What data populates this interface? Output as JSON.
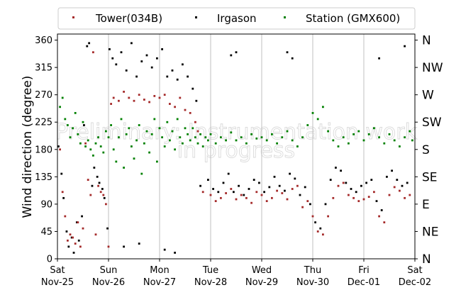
{
  "chart_data": {
    "type": "scatter",
    "ylabel": "Wind direction (degree)",
    "ylim": [
      0,
      370
    ],
    "xlim": [
      "2024-11-25T00:00",
      "2024-12-02T00:00"
    ],
    "grid": "vertical at day boundaries",
    "legend": {
      "placement": "top, outside plot, 3 columns"
    },
    "watermark": [
      "Preliminary: Instrumentation work",
      "in progress"
    ],
    "x_tick_labels": [
      {
        "day": "Sat",
        "date": "Nov-25"
      },
      {
        "day": "Sun",
        "date": "Nov-26"
      },
      {
        "day": "Mon",
        "date": "Nov-27"
      },
      {
        "day": "Tue",
        "date": "Nov-28"
      },
      {
        "day": "Wed",
        "date": "Nov-29"
      },
      {
        "day": "Thu",
        "date": "Nov-30"
      },
      {
        "day": "Fri",
        "date": "Dec-01"
      },
      {
        "day": "Sat",
        "date": "Dec-02"
      }
    ],
    "y_ticks": [
      0,
      45,
      90,
      135,
      180,
      225,
      270,
      315,
      360
    ],
    "y_ticks_right": [
      {
        "value": 0,
        "label": "N"
      },
      {
        "value": 45,
        "label": "NE"
      },
      {
        "value": 90,
        "label": "E"
      },
      {
        "value": 135,
        "label": "SE"
      },
      {
        "value": 180,
        "label": "S"
      },
      {
        "value": 225,
        "label": "SW"
      },
      {
        "value": 270,
        "label": "W"
      },
      {
        "value": 315,
        "label": "NW"
      },
      {
        "value": 360,
        "label": "N"
      }
    ],
    "series": [
      {
        "name": "Tower(034B)",
        "color": "#a52a2a",
        "x_unit": "days since Nov-25 00:00",
        "points": [
          [
            0.05,
            180
          ],
          [
            0.1,
            110
          ],
          [
            0.15,
            70
          ],
          [
            0.2,
            30
          ],
          [
            0.25,
            40
          ],
          [
            0.3,
            35
          ],
          [
            0.35,
            25
          ],
          [
            0.4,
            60
          ],
          [
            0.45,
            20
          ],
          [
            0.5,
            50
          ],
          [
            0.55,
            190
          ],
          [
            0.6,
            130
          ],
          [
            0.65,
            105
          ],
          [
            0.7,
            340
          ],
          [
            0.75,
            40
          ],
          [
            0.8,
            120
          ],
          [
            0.85,
            110
          ],
          [
            0.9,
            105
          ],
          [
            0.95,
            90
          ],
          [
            1.0,
            20
          ],
          [
            1.05,
            255
          ],
          [
            1.1,
            265
          ],
          [
            1.2,
            260
          ],
          [
            1.3,
            275
          ],
          [
            1.4,
            265
          ],
          [
            1.5,
            260
          ],
          [
            1.6,
            270
          ],
          [
            1.7,
            262
          ],
          [
            1.8,
            258
          ],
          [
            1.9,
            268
          ],
          [
            2.0,
            265
          ],
          [
            2.1,
            270
          ],
          [
            2.2,
            255
          ],
          [
            2.3,
            250
          ],
          [
            2.4,
            265
          ],
          [
            2.5,
            245
          ],
          [
            2.6,
            240
          ],
          [
            2.7,
            225
          ],
          [
            2.75,
            210
          ],
          [
            2.85,
            110
          ],
          [
            3.0,
            105
          ],
          [
            3.1,
            95
          ],
          [
            3.2,
            100
          ],
          [
            3.3,
            108
          ],
          [
            3.4,
            115
          ],
          [
            3.5,
            98
          ],
          [
            3.6,
            105
          ],
          [
            3.7,
            100
          ],
          [
            3.8,
            92
          ],
          [
            3.9,
            110
          ],
          [
            4.0,
            105
          ],
          [
            4.1,
            95
          ],
          [
            4.2,
            100
          ],
          [
            4.3,
            112
          ],
          [
            4.4,
            108
          ],
          [
            4.5,
            98
          ],
          [
            4.6,
            115
          ],
          [
            4.7,
            120
          ],
          [
            4.8,
            85
          ],
          [
            4.9,
            95
          ],
          [
            5.0,
            70
          ],
          [
            5.1,
            45
          ],
          [
            5.2,
            40
          ],
          [
            5.3,
            70
          ],
          [
            5.4,
            100
          ],
          [
            5.5,
            120
          ],
          [
            5.6,
            125
          ],
          [
            5.7,
            105
          ],
          [
            5.8,
            100
          ],
          [
            5.9,
            95
          ],
          [
            6.0,
            98
          ],
          [
            6.1,
            102
          ],
          [
            6.2,
            110
          ],
          [
            6.3,
            70
          ],
          [
            6.4,
            60
          ],
          [
            6.5,
            105
          ],
          [
            6.6,
            118
          ],
          [
            6.7,
            112
          ],
          [
            6.8,
            100
          ],
          [
            6.9,
            105
          ]
        ]
      },
      {
        "name": "Irgason",
        "color": "#000000",
        "x_unit": "days since Nov-25 00:00",
        "points": [
          [
            0.02,
            185
          ],
          [
            0.08,
            140
          ],
          [
            0.12,
            100
          ],
          [
            0.18,
            45
          ],
          [
            0.22,
            20
          ],
          [
            0.28,
            35
          ],
          [
            0.32,
            10
          ],
          [
            0.38,
            60
          ],
          [
            0.42,
            30
          ],
          [
            0.48,
            70
          ],
          [
            0.52,
            220
          ],
          [
            0.58,
            350
          ],
          [
            0.62,
            355
          ],
          [
            0.68,
            120
          ],
          [
            0.72,
            150
          ],
          [
            0.78,
            135
          ],
          [
            0.82,
            125
          ],
          [
            0.88,
            115
          ],
          [
            0.92,
            100
          ],
          [
            0.98,
            50
          ],
          [
            1.02,
            345
          ],
          [
            1.08,
            330
          ],
          [
            1.15,
            320
          ],
          [
            1.25,
            340
          ],
          [
            1.35,
            310
          ],
          [
            1.45,
            355
          ],
          [
            1.55,
            300
          ],
          [
            1.65,
            325
          ],
          [
            1.75,
            335
          ],
          [
            1.85,
            315
          ],
          [
            1.95,
            330
          ],
          [
            2.05,
            345
          ],
          [
            2.15,
            300
          ],
          [
            2.25,
            310
          ],
          [
            2.35,
            295
          ],
          [
            2.45,
            320
          ],
          [
            2.55,
            300
          ],
          [
            2.65,
            280
          ],
          [
            2.72,
            260
          ],
          [
            2.8,
            120
          ],
          [
            2.95,
            130
          ],
          [
            3.05,
            115
          ],
          [
            3.15,
            110
          ],
          [
            3.25,
            125
          ],
          [
            3.35,
            140
          ],
          [
            3.45,
            110
          ],
          [
            3.55,
            120
          ],
          [
            3.65,
            105
          ],
          [
            3.75,
            115
          ],
          [
            3.85,
            130
          ],
          [
            3.95,
            125
          ],
          [
            4.05,
            110
          ],
          [
            4.15,
            118
          ],
          [
            4.25,
            135
          ],
          [
            4.35,
            120
          ],
          [
            4.45,
            112
          ],
          [
            4.55,
            140
          ],
          [
            4.65,
            132
          ],
          [
            4.75,
            105
          ],
          [
            4.85,
            118
          ],
          [
            4.95,
            90
          ],
          [
            5.05,
            60
          ],
          [
            5.15,
            50
          ],
          [
            5.25,
            90
          ],
          [
            5.35,
            130
          ],
          [
            5.45,
            150
          ],
          [
            5.55,
            145
          ],
          [
            5.65,
            125
          ],
          [
            5.75,
            115
          ],
          [
            5.85,
            110
          ],
          [
            5.95,
            120
          ],
          [
            6.05,
            125
          ],
          [
            6.15,
            130
          ],
          [
            6.25,
            95
          ],
          [
            6.35,
            80
          ],
          [
            6.45,
            135
          ],
          [
            6.55,
            145
          ],
          [
            6.65,
            130
          ],
          [
            6.75,
            120
          ],
          [
            6.85,
            125
          ],
          [
            4.5,
            340
          ],
          [
            4.6,
            330
          ],
          [
            3.4,
            335
          ],
          [
            3.5,
            340
          ],
          [
            2.3,
            10
          ],
          [
            6.8,
            350
          ],
          [
            1.3,
            20
          ],
          [
            1.6,
            25
          ],
          [
            2.1,
            15
          ],
          [
            6.3,
            330
          ]
        ]
      },
      {
        "name": "Station (GMX600)",
        "color": "#008000",
        "x_unit": "days since Nov-25 00:00",
        "points": [
          [
            0.05,
            250
          ],
          [
            0.1,
            265
          ],
          [
            0.15,
            230
          ],
          [
            0.2,
            220
          ],
          [
            0.25,
            200
          ],
          [
            0.3,
            215
          ],
          [
            0.35,
            240
          ],
          [
            0.4,
            205
          ],
          [
            0.45,
            190
          ],
          [
            0.5,
            225
          ],
          [
            0.55,
            185
          ],
          [
            0.6,
            195
          ],
          [
            0.65,
            180
          ],
          [
            0.7,
            170
          ],
          [
            0.75,
            190
          ],
          [
            0.8,
            200
          ],
          [
            0.85,
            185
          ],
          [
            0.9,
            175
          ],
          [
            0.95,
            210
          ],
          [
            1.0,
            200
          ],
          [
            1.05,
            220
          ],
          [
            1.1,
            180
          ],
          [
            1.15,
            160
          ],
          [
            1.2,
            200
          ],
          [
            1.25,
            230
          ],
          [
            1.3,
            150
          ],
          [
            1.35,
            205
          ],
          [
            1.4,
            215
          ],
          [
            1.45,
            185
          ],
          [
            1.5,
            165
          ],
          [
            1.55,
            195
          ],
          [
            1.6,
            220
          ],
          [
            1.65,
            140
          ],
          [
            1.7,
            190
          ],
          [
            1.75,
            210
          ],
          [
            1.8,
            175
          ],
          [
            1.85,
            205
          ],
          [
            1.9,
            230
          ],
          [
            1.95,
            160
          ],
          [
            2.0,
            215
          ],
          [
            2.05,
            200
          ],
          [
            2.1,
            185
          ],
          [
            2.15,
            225
          ],
          [
            2.2,
            195
          ],
          [
            2.25,
            210
          ],
          [
            2.3,
            180
          ],
          [
            2.35,
            230
          ],
          [
            2.4,
            200
          ],
          [
            2.45,
            190
          ],
          [
            2.5,
            215
          ],
          [
            2.55,
            205
          ],
          [
            2.6,
            195
          ],
          [
            2.65,
            215
          ],
          [
            2.7,
            200
          ],
          [
            2.75,
            190
          ],
          [
            2.8,
            205
          ],
          [
            2.85,
            185
          ],
          [
            2.9,
            200
          ],
          [
            2.95,
            195
          ],
          [
            3.0,
            205
          ],
          [
            3.1,
            190
          ],
          [
            3.2,
            200
          ],
          [
            3.3,
            195
          ],
          [
            3.4,
            208
          ],
          [
            3.5,
            195
          ],
          [
            3.6,
            200
          ],
          [
            3.7,
            190
          ],
          [
            3.8,
            205
          ],
          [
            3.9,
            198
          ],
          [
            4.0,
            200
          ],
          [
            4.1,
            195
          ],
          [
            4.2,
            205
          ],
          [
            4.3,
            190
          ],
          [
            4.4,
            200
          ],
          [
            4.5,
            210
          ],
          [
            4.6,
            195
          ],
          [
            4.7,
            185
          ],
          [
            4.8,
            200
          ],
          [
            4.9,
            220
          ],
          [
            5.0,
            240
          ],
          [
            5.1,
            230
          ],
          [
            5.2,
            250
          ],
          [
            5.3,
            210
          ],
          [
            5.4,
            195
          ],
          [
            5.5,
            185
          ],
          [
            5.6,
            200
          ],
          [
            5.7,
            190
          ],
          [
            5.8,
            205
          ],
          [
            5.9,
            210
          ],
          [
            6.0,
            195
          ],
          [
            6.1,
            205
          ],
          [
            6.2,
            215
          ],
          [
            6.3,
            200
          ],
          [
            6.4,
            190
          ],
          [
            6.5,
            205
          ],
          [
            6.6,
            195
          ],
          [
            6.7,
            185
          ],
          [
            6.8,
            200
          ],
          [
            6.9,
            210
          ],
          [
            6.95,
            195
          ]
        ]
      }
    ]
  }
}
